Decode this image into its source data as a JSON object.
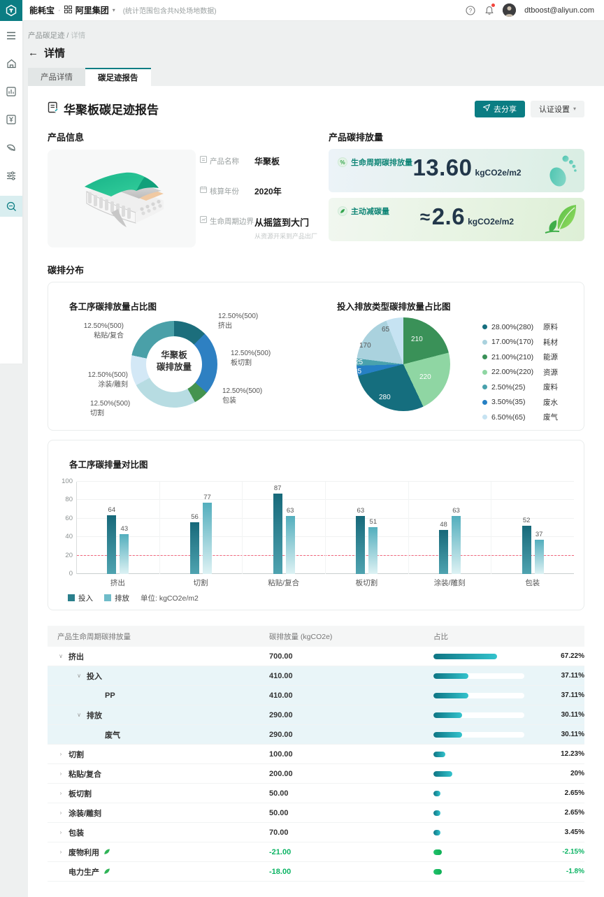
{
  "topbar": {
    "brand": "能耗宝",
    "separator": "·",
    "org": "阿里集团",
    "scope_note": "(统计范围包含共N处场地数据)",
    "user_email": "dtboost@aliyun.com"
  },
  "sidebar": {
    "icons": [
      "menu-icon",
      "home-icon",
      "report-icon",
      "billing-icon",
      "leaf-icon",
      "sliders-icon",
      "search-icon"
    ]
  },
  "breadcrumb": {
    "section": "产品碳足迹",
    "separator": "/",
    "current": "详情"
  },
  "page": {
    "back_arrow": "←",
    "title": "详情"
  },
  "tabs": {
    "product": "产品详情",
    "report": "碳足迹报告"
  },
  "report_header": {
    "title": "华聚板碳足迹报告",
    "share_button": "去分享",
    "cert_button": "认证设置"
  },
  "product_info": {
    "section_title": "产品信息",
    "fields": [
      {
        "label": "产品名称",
        "value": "华聚板"
      },
      {
        "label": "核算年份",
        "value": "2020年"
      },
      {
        "label": "生命周期边界",
        "value": "从摇篮到大门",
        "note": "从资源开采到产品出厂"
      }
    ]
  },
  "emission_summary": {
    "section_title": "产品碳排放量",
    "cards": [
      {
        "label": "生命周期碳排放量",
        "approx": "",
        "value": "13.60",
        "unit": "kgCO2e/m2",
        "icon": "percent-badge-icon"
      },
      {
        "label": "主动减碳量",
        "approx": "≈",
        "value": "2.6",
        "unit": "kgCO2e/m2",
        "icon": "leaf-badge-icon"
      }
    ]
  },
  "distribution_section_title": "碳排分布",
  "chart_data": [
    {
      "type": "donut",
      "title": "各工序碳排放量占比图",
      "center_line1": "华聚板",
      "center_line2": "碳排放量",
      "slices": [
        {
          "name": "挤出",
          "pct_label": "12.50%(500)",
          "value": 500,
          "color": "#1c6e7c",
          "angle": 45
        },
        {
          "name": "板切割",
          "pct_label": "12.50%(500)",
          "value": 500,
          "color": "#2e80c2",
          "angle": 86
        },
        {
          "name": "包装",
          "pct_label": "12.50%(500)",
          "value": 500,
          "color": "#44934f",
          "angle": 20
        },
        {
          "name": "切割",
          "pct_label": "12.50%(500)",
          "value": 500,
          "color": "#b7dce2",
          "angle": 90
        },
        {
          "name": "涂装/雕刻",
          "pct_label": "12.50%(500)",
          "value": 500,
          "color": "#d3e8f6",
          "angle": 41
        },
        {
          "name": "粘贴/复合",
          "pct_label": "12.50%(500)",
          "value": 500,
          "color": "#4aa0a8",
          "angle": 78
        }
      ]
    },
    {
      "type": "pie",
      "title": "投入排放类型碳排放量占比图",
      "slices": [
        {
          "name": "原料",
          "pct": 28.0,
          "value": 280,
          "pct_label": "28.00%(280)",
          "color": "#156e7e"
        },
        {
          "name": "耗材",
          "pct": 17.0,
          "value": 170,
          "pct_label": "17.00%(170)",
          "color": "#aad2de",
          "label_dark": true
        },
        {
          "name": "能源",
          "pct": 21.0,
          "value": 210,
          "pct_label": "21.00%(210)",
          "color": "#3a9158"
        },
        {
          "name": "资源",
          "pct": 22.0,
          "value": 220,
          "pct_label": "22.00%(220)",
          "color": "#8fd6a3"
        },
        {
          "name": "废料",
          "pct": 2.5,
          "value": 25,
          "pct_label": "2.50%(25)",
          "color": "#4aa2ad"
        },
        {
          "name": "废水",
          "pct": 3.5,
          "value": 35,
          "pct_label": "3.50%(35)",
          "color": "#2680c4"
        },
        {
          "name": "废气",
          "pct": 6.5,
          "value": 65,
          "pct_label": "6.50%(65)",
          "color": "#c6e3f2",
          "label_dark": true
        }
      ],
      "draw_order": [
        2,
        3,
        0,
        5,
        4,
        1,
        6
      ]
    },
    {
      "type": "bar",
      "title": "各工序碳排量对比图",
      "categories": [
        "挤出",
        "切割",
        "粘贴/复合",
        "板切割",
        "涂装/雕刻",
        "包装"
      ],
      "series": [
        {
          "name": "投入",
          "values": [
            64,
            56,
            87,
            63,
            48,
            52
          ],
          "color_top": "#17697a",
          "color_bottom": "#4fa3b0",
          "swatch": "#2a7f8c"
        },
        {
          "name": "排放",
          "values": [
            43,
            77,
            63,
            51,
            63,
            37
          ],
          "color_top": "#53aebd",
          "color_bottom": "#ddf2f4",
          "swatch": "#6fbcc9"
        }
      ],
      "yticks": [
        0,
        20,
        40,
        60,
        80,
        100
      ],
      "ylim": [
        0,
        100
      ],
      "baseline": 20,
      "unit_label": "单位: kgCO2e/m2"
    }
  ],
  "table": {
    "headers": [
      "产品生命周期碳排放量",
      "碳排放量 (kgCO2e)",
      "占比"
    ],
    "rows": [
      {
        "label": "挤出",
        "level": 0,
        "caret": "open",
        "value": "700.00",
        "pct": "67.22%",
        "pct_num": 67.22,
        "highlight": false,
        "negative": false,
        "leaf": false
      },
      {
        "label": "投入",
        "level": 1,
        "caret": "open",
        "value": "410.00",
        "pct": "37.11%",
        "pct_num": 37.11,
        "highlight": true,
        "negative": false,
        "leaf": false
      },
      {
        "label": "PP",
        "level": 2,
        "caret": "none",
        "value": "410.00",
        "pct": "37.11%",
        "pct_num": 37.11,
        "highlight": true,
        "negative": false,
        "leaf": false
      },
      {
        "label": "排放",
        "level": 1,
        "caret": "open",
        "value": "290.00",
        "pct": "30.11%",
        "pct_num": 30.11,
        "highlight": true,
        "negative": false,
        "leaf": false
      },
      {
        "label": "废气",
        "level": 2,
        "caret": "none",
        "value": "290.00",
        "pct": "30.11%",
        "pct_num": 30.11,
        "highlight": true,
        "negative": false,
        "leaf": false
      },
      {
        "label": "切割",
        "level": 0,
        "caret": "closed",
        "value": "100.00",
        "pct": "12.23%",
        "pct_num": 12.23,
        "highlight": false,
        "negative": false,
        "leaf": false
      },
      {
        "label": "粘贴/复合",
        "level": 0,
        "caret": "closed",
        "value": "200.00",
        "pct": "20%",
        "pct_num": 20,
        "highlight": false,
        "negative": false,
        "leaf": false
      },
      {
        "label": "板切割",
        "level": 0,
        "caret": "closed",
        "value": "50.00",
        "pct": "2.65%",
        "pct_num": 2.65,
        "highlight": false,
        "negative": false,
        "leaf": false
      },
      {
        "label": "涂装/雕刻",
        "level": 0,
        "caret": "closed",
        "value": "50.00",
        "pct": "2.65%",
        "pct_num": 2.65,
        "highlight": false,
        "negative": false,
        "leaf": false
      },
      {
        "label": "包装",
        "level": 0,
        "caret": "closed",
        "value": "70.00",
        "pct": "3.45%",
        "pct_num": 3.45,
        "highlight": false,
        "negative": false,
        "leaf": false
      },
      {
        "label": "废物利用",
        "level": 0,
        "caret": "closed",
        "value": "-21.00",
        "pct": "-2.15%",
        "pct_num": 2.15,
        "highlight": false,
        "negative": true,
        "leaf": true
      },
      {
        "label": "电力生产",
        "level": 0,
        "caret": "none",
        "value": "-18.00",
        "pct": "-1.8%",
        "pct_num": 1.8,
        "highlight": false,
        "negative": true,
        "leaf": true
      }
    ]
  },
  "colors": {
    "brand_teal": "#0b7d83",
    "negative_green": "#0cb464",
    "alert_red": "#f2637b"
  }
}
